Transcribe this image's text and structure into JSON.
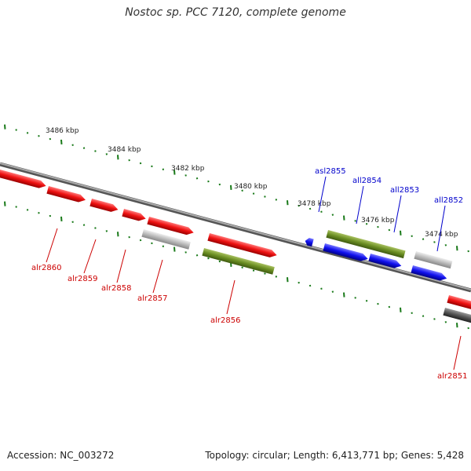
{
  "title": "Nostoc sp. PCC 7120, complete genome",
  "footer": {
    "accession": "Accession: NC_003272",
    "summary": "Topology: circular; Length: 6,413,771 bp; Genes: 5,428"
  },
  "colors": {
    "tick": "#1a7a1a",
    "backbone": "#777777",
    "label_red": "#cc0000",
    "label_blue": "#0000cc",
    "gene_red": "#ee1111",
    "gene_olive": "#6b8e23",
    "gene_blue": "#1111ee",
    "gene_lightgray": "#bbbbbb",
    "gene_darkgray": "#555555"
  },
  "scale_labels": [
    "3486 kbp",
    "3484 kbp",
    "3482 kbp",
    "3480 kbp",
    "3478 kbp",
    "3476 kbp",
    "3474 kbp"
  ],
  "genes": [
    {
      "label": "asl2855",
      "strand": "blue"
    },
    {
      "label": "all2854",
      "strand": "blue"
    },
    {
      "label": "all2853",
      "strand": "blue"
    },
    {
      "label": "all2852",
      "strand": "blue"
    },
    {
      "label": "alr2860",
      "strand": "red"
    },
    {
      "label": "alr2859",
      "strand": "red"
    },
    {
      "label": "alr2858",
      "strand": "red"
    },
    {
      "label": "alr2857",
      "strand": "red"
    },
    {
      "label": "alr2856",
      "strand": "red"
    },
    {
      "label": "alr2851",
      "strand": "red"
    }
  ]
}
